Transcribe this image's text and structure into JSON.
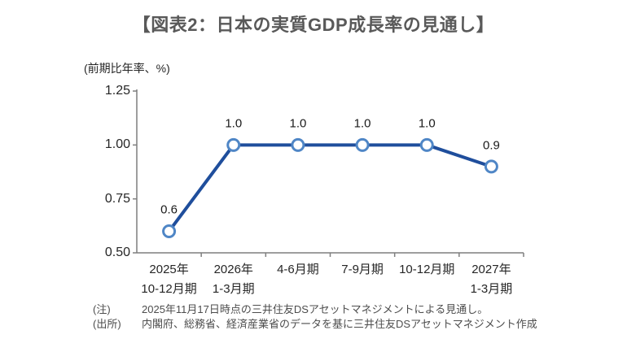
{
  "title": "【図表2：日本の実質GDP成長率の見通し】",
  "chart_data": {
    "type": "line",
    "title": "【図表2：日本の実質GDP成長率の見通し】",
    "ylabel": "(前期比年率、%)",
    "xlabel": "",
    "categories": [
      [
        "2025年",
        "10-12月期"
      ],
      [
        "2026年",
        "1-3月期"
      ],
      [
        "4-6月期"
      ],
      [
        "7-9月期"
      ],
      [
        "10-12月期"
      ],
      [
        "2027年",
        "1-3月期"
      ]
    ],
    "values": [
      0.6,
      1.0,
      1.0,
      1.0,
      1.0,
      0.9
    ],
    "point_labels": [
      "0.6",
      "1.0",
      "1.0",
      "1.0",
      "1.0",
      "0.9"
    ],
    "ylim": [
      0.5,
      1.25
    ],
    "y_ticks": [
      1.25,
      1.0,
      0.75,
      0.5
    ],
    "y_tick_labels": [
      "1.25",
      "1.00",
      "0.75",
      "0.50"
    ],
    "grid": false,
    "legend_position": "none",
    "line_color": "#1F4E9C",
    "marker_stroke": "#4F86C6",
    "marker_fill": "#FFFFFF",
    "axis_color": "#7F7F7F"
  },
  "notes": [
    {
      "label": "(注)",
      "text": "2025年11月17日時点の三井住友DSアセットマネジメントによる見通し。"
    },
    {
      "label": "(出所)",
      "text": "内閣府、総務省、経済産業省のデータを基に三井住友DSアセットマネジメント作成"
    }
  ]
}
